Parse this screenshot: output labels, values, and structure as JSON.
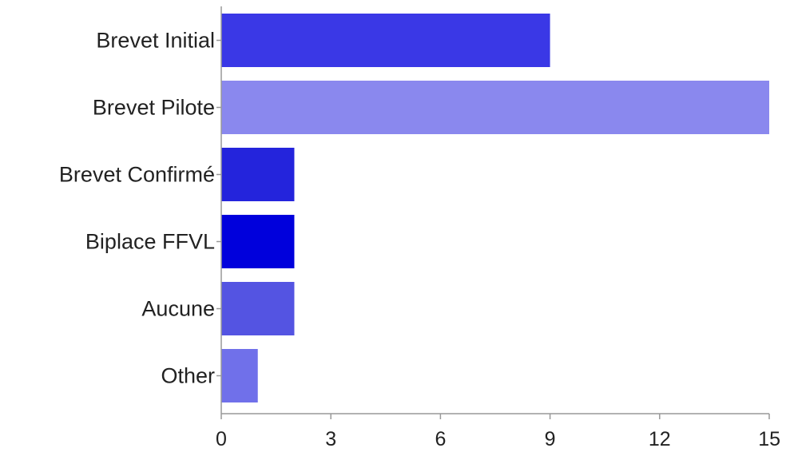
{
  "chart_data": {
    "type": "bar",
    "orientation": "horizontal",
    "title": "",
    "xlabel": "",
    "ylabel": "",
    "categories": [
      "Brevet Initial",
      "Brevet Pilote",
      "Brevet Confirmé",
      "Biplace FFVL",
      "Aucune",
      "Other"
    ],
    "values": [
      9,
      15,
      2,
      2,
      2,
      1
    ],
    "bar_colors": [
      "#3a38e6",
      "#8a88ee",
      "#2424dc",
      "#0000dc",
      "#5454e2",
      "#7070ea"
    ],
    "xlim": [
      0,
      15
    ],
    "xticks": [
      "0",
      "3",
      "6",
      "9",
      "12",
      "15"
    ],
    "grid": false,
    "legend": "none"
  }
}
